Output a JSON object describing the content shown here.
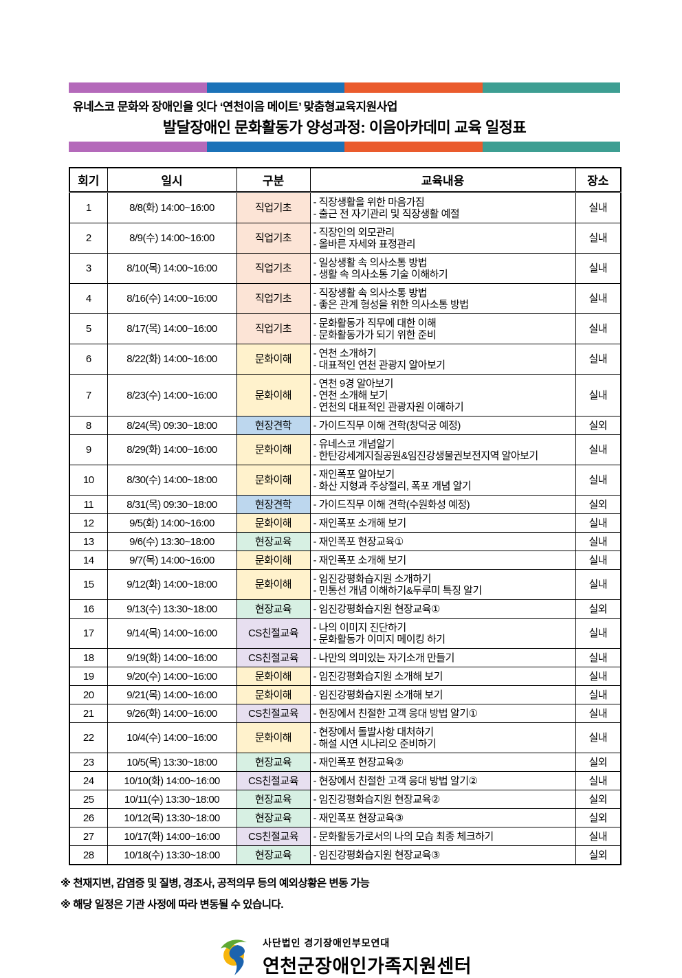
{
  "header": {
    "bar_colors": [
      "#B469BA",
      "#1B72B8",
      "#EA5B2D",
      "#3D9E92"
    ],
    "subtitle": "유네스코 문화와 장애인을 잇다 ‘연천이음 메이트’ 맞춤형교육지원사업",
    "title": "발달장애인 문화활동가 양성과정: 이음아카데미 교육 일정표"
  },
  "table": {
    "columns": [
      "회기",
      "일시",
      "구분",
      "교육내용",
      "장소"
    ],
    "category_colors": {
      "직업기초": "#FCE4D6",
      "문화이해": "#FFF2CC",
      "현장견학": "#BDD7EE",
      "현장교육": "#D7F0E3",
      "CS친절교육": "#E7DFF0"
    },
    "rows": [
      {
        "no": "1",
        "date": "8/8(화) 14:00~16:00",
        "category": "직업기초",
        "content": [
          "직장생활을 위한 마음가짐",
          "출근 전 자기관리 및 직장생활 예절"
        ],
        "place": "실내"
      },
      {
        "no": "2",
        "date": "8/9(수) 14:00~16:00",
        "category": "직업기초",
        "content": [
          "직장인의 외모관리",
          "올바른 자세와 표정관리"
        ],
        "place": "실내"
      },
      {
        "no": "3",
        "date": "8/10(목) 14:00~16:00",
        "category": "직업기초",
        "content": [
          "일상생활 속 의사소통 방법",
          "생활 속 의사소통 기술 이해하기"
        ],
        "place": "실내"
      },
      {
        "no": "4",
        "date": "8/16(수) 14:00~16:00",
        "category": "직업기초",
        "content": [
          "직장생활 속 의사소통 방법",
          "좋은 관계 형성을 위한 의사소통 방법"
        ],
        "place": "실내"
      },
      {
        "no": "5",
        "date": "8/17(목) 14:00~16:00",
        "category": "직업기초",
        "content": [
          "문화활동가 직무에 대한 이해",
          "문화활동가가 되기 위한 준비"
        ],
        "place": "실내"
      },
      {
        "no": "6",
        "date": "8/22(화) 14:00~16:00",
        "category": "문화이해",
        "content": [
          "연천 소개하기",
          "대표적인 연천 관광지 알아보기"
        ],
        "place": "실내"
      },
      {
        "no": "7",
        "date": "8/23(수) 14:00~16:00",
        "category": "문화이해",
        "content": [
          "연천 9경 알아보기",
          "연천 소개해 보기",
          "연천의 대표적인 관광자원 이해하기"
        ],
        "place": "실내"
      },
      {
        "no": "8",
        "date": "8/24(목) 09:30~18:00",
        "category": "현장견학",
        "content": [
          "가이드직무 이해 견학(창덕궁 예정)"
        ],
        "place": "실외"
      },
      {
        "no": "9",
        "date": "8/29(화) 14:00~16:00",
        "category": "문화이해",
        "content": [
          "유네스코 개념알기",
          "한탄강세계지질공원&임진강생물권보전지역 알아보기"
        ],
        "place": "실내"
      },
      {
        "no": "10",
        "date": "8/30(수) 14:00~18:00",
        "category": "문화이해",
        "content": [
          "재인폭포 알아보기",
          "화산 지형과 주상절리, 폭포 개념 알기"
        ],
        "place": "실내"
      },
      {
        "no": "11",
        "date": "8/31(목) 09:30~18:00",
        "category": "현장견학",
        "content": [
          "가이드직무 이해 견학(수원화성 예정)"
        ],
        "place": "실외"
      },
      {
        "no": "12",
        "date": "9/5(화) 14:00~16:00",
        "category": "문화이해",
        "content": [
          "재인폭포 소개해 보기"
        ],
        "place": "실내"
      },
      {
        "no": "13",
        "date": "9/6(수) 13:30~18:00",
        "category": "현장교육",
        "content": [
          "재인폭포 현장교육①"
        ],
        "place": "실내"
      },
      {
        "no": "14",
        "date": "9/7(목) 14:00~16:00",
        "category": "문화이해",
        "content": [
          "재인폭포 소개해 보기"
        ],
        "place": "실내"
      },
      {
        "no": "15",
        "date": "9/12(화) 14:00~18:00",
        "category": "문화이해",
        "content": [
          "임진강평화습지원 소개하기",
          "민통선 개념 이해하기&두루미 특징 알기"
        ],
        "place": "실내"
      },
      {
        "no": "16",
        "date": "9/13(수) 13:30~18:00",
        "category": "현장교육",
        "content": [
          "임진강평화습지원 현장교육①"
        ],
        "place": "실외"
      },
      {
        "no": "17",
        "date": "9/14(목) 14:00~16:00",
        "category": "CS친절교육",
        "content": [
          "나의 이미지 진단하기",
          "문화활동가 이미지 메이킹 하기"
        ],
        "place": "실내"
      },
      {
        "no": "18",
        "date": "9/19(화) 14:00~16:00",
        "category": "CS친절교육",
        "content": [
          "나만의 의미있는 자기소개 만들기"
        ],
        "place": "실내"
      },
      {
        "no": "19",
        "date": "9/20(수) 14:00~16:00",
        "category": "문화이해",
        "content": [
          "임진강평화습지원 소개해 보기"
        ],
        "place": "실내"
      },
      {
        "no": "20",
        "date": "9/21(목) 14:00~16:00",
        "category": "문화이해",
        "content": [
          "임진강평화습지원 소개해 보기"
        ],
        "place": "실내"
      },
      {
        "no": "21",
        "date": "9/26(화) 14:00~16:00",
        "category": "CS친절교육",
        "content": [
          "현장에서 친절한 고객 응대 방법 알기①"
        ],
        "place": "실내"
      },
      {
        "no": "22",
        "date": "10/4(수) 14:00~16:00",
        "category": "문화이해",
        "content": [
          "현장에서 돌발사항 대처하기",
          "해설 시연 시나리오 준비하기"
        ],
        "place": "실내"
      },
      {
        "no": "23",
        "date": "10/5(목) 13:30~18:00",
        "category": "현장교육",
        "content": [
          "재인폭포 현장교육②"
        ],
        "place": "실외"
      },
      {
        "no": "24",
        "date": "10/10(화) 14:00~16:00",
        "category": "CS친절교육",
        "content": [
          "현장에서 친절한 고객 응대 방법 알기②"
        ],
        "place": "실내"
      },
      {
        "no": "25",
        "date": "10/11(수) 13:30~18:00",
        "category": "현장교육",
        "content": [
          "임진강평화습지원 현장교육②"
        ],
        "place": "실외"
      },
      {
        "no": "26",
        "date": "10/12(목) 13:30~18:00",
        "category": "현장교육",
        "content": [
          "재인폭포 현장교육③"
        ],
        "place": "실외"
      },
      {
        "no": "27",
        "date": "10/17(화) 14:00~16:00",
        "category": "CS친절교육",
        "content": [
          "문화활동가로서의 나의 모습 최종 체크하기"
        ],
        "place": "실내"
      },
      {
        "no": "28",
        "date": "10/18(수) 13:30~18:00",
        "category": "현장교육",
        "content": [
          "임진강평화습지원 현장교육③"
        ],
        "place": "실외"
      }
    ]
  },
  "notes": [
    "※ 천재지변, 감염증 및 질병, 경조사, 공적의무 등의 예외상황은 변동 가능",
    "※ 해당 일정은 기관 사정에 따라 변동될 수 있습니다."
  ],
  "logo": {
    "org_small": "사단법인 경기장애인부모연대",
    "org_large": "연천군장애인가족지원센터",
    "mark_colors": {
      "circle": "#F7B50C",
      "leaf": "#5FA832",
      "ribbon": "#1C63AE"
    }
  }
}
